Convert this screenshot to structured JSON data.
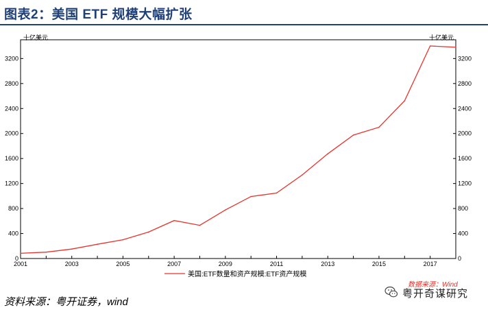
{
  "header": {
    "title": "图表2：美国 ETF 规模大幅扩张"
  },
  "footer": {
    "source": "资料来源：粤开证券，wind"
  },
  "watermark": {
    "source_text": "数据来源：Wind",
    "name": "粤开奇谋研究",
    "logo_icon": "wechat-icon"
  },
  "colors": {
    "title": "#1f3f77",
    "series": "#e8322b",
    "axis": "#000000"
  },
  "chart_data": {
    "type": "line",
    "title": "",
    "xlabel": "",
    "ylabel_left": "十亿美元",
    "ylabel_right": "十亿美元",
    "x_ticks": [
      "2001",
      "2003",
      "2005",
      "2007",
      "2009",
      "2011",
      "2013",
      "2015",
      "2017"
    ],
    "y_ticks": [
      0,
      400,
      800,
      1200,
      1600,
      2000,
      2400,
      2800,
      3200
    ],
    "xlim": [
      2001,
      2018
    ],
    "ylim": [
      0,
      3500
    ],
    "legend_position": "bottom",
    "series": [
      {
        "name": "美国:ETF数量和资产规模:ETF资产规模",
        "x": [
          2001,
          2002,
          2003,
          2004,
          2005,
          2006,
          2007,
          2008,
          2009,
          2010,
          2011,
          2012,
          2013,
          2014,
          2015,
          2016,
          2017,
          2018
        ],
        "values": [
          83,
          102,
          151,
          228,
          301,
          423,
          608,
          531,
          777,
          992,
          1048,
          1337,
          1675,
          1975,
          2100,
          2524,
          3401,
          3380
        ]
      }
    ]
  }
}
